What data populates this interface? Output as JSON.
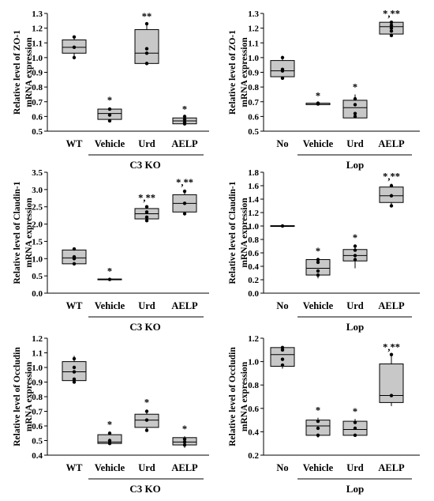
{
  "chart_data": [
    {
      "type": "box",
      "ylabel_lines": [
        "Relative level of ZO-1",
        "mRNA expression"
      ],
      "ylim": [
        0.5,
        1.3
      ],
      "yticks": [
        "0.5",
        "0.6",
        "0.7",
        "0.8",
        "0.9",
        "1.0",
        "1.1",
        "1.2",
        "1.3"
      ],
      "categories": [
        "WT",
        "Vehicle",
        "Urd",
        "AELP"
      ],
      "group_label": "C3 KO",
      "boxes": [
        {
          "q1": 1.03,
          "median": 1.07,
          "q3": 1.12,
          "min": 1.0,
          "max": 1.14,
          "points": [
            1.0,
            1.07,
            1.14
          ],
          "sig": ""
        },
        {
          "q1": 0.58,
          "median": 0.62,
          "q3": 0.65,
          "min": 0.56,
          "max": 0.66,
          "points": [
            0.57,
            0.61,
            0.65
          ],
          "sig": "*"
        },
        {
          "q1": 0.96,
          "median": 1.03,
          "q3": 1.19,
          "min": 0.95,
          "max": 1.23,
          "points": [
            0.96,
            1.03,
            1.06,
            1.23
          ],
          "sig": "**"
        },
        {
          "q1": 0.55,
          "median": 0.57,
          "q3": 0.59,
          "min": 0.54,
          "max": 0.6,
          "points": [
            0.55,
            0.56,
            0.58,
            0.6
          ],
          "sig": "*"
        }
      ]
    },
    {
      "type": "box",
      "ylabel_lines": [
        "Relative level of ZO-1",
        "mRNA expression"
      ],
      "ylim": [
        0.5,
        1.3
      ],
      "yticks": [
        "0.5",
        "0.6",
        "0.7",
        "0.8",
        "0.9",
        "1.0",
        "1.1",
        "1.2",
        "1.3"
      ],
      "categories": [
        "No",
        "Vehicle",
        "Urd",
        "AELP"
      ],
      "group_label": "Lop",
      "boxes": [
        {
          "q1": 0.87,
          "median": 0.91,
          "q3": 0.98,
          "min": 0.86,
          "max": 1.0,
          "points": [
            0.86,
            0.91,
            0.92,
            1.0
          ],
          "sig": ""
        },
        {
          "q1": 0.68,
          "median": 0.69,
          "q3": 0.69,
          "min": 0.68,
          "max": 0.69,
          "points": [
            0.685,
            0.69
          ],
          "sig": "*"
        },
        {
          "q1": 0.59,
          "median": 0.66,
          "q3": 0.71,
          "min": 0.59,
          "max": 0.75,
          "points": [
            0.6,
            0.62,
            0.68,
            0.72
          ],
          "sig": "*"
        },
        {
          "q1": 1.16,
          "median": 1.21,
          "q3": 1.24,
          "min": 1.14,
          "max": 1.25,
          "points": [
            1.15,
            1.18,
            1.2,
            1.22,
            1.24
          ],
          "sig": "*,**"
        }
      ]
    },
    {
      "type": "box",
      "ylabel_lines": [
        "Relative level of Claudin-1",
        "mRNA expression"
      ],
      "ylim": [
        0.0,
        3.5
      ],
      "yticks": [
        "0.0",
        "0.5",
        "1.0",
        "1.5",
        "2.0",
        "2.5",
        "3.0",
        "3.5"
      ],
      "categories": [
        "WT",
        "Vehicle",
        "Urd",
        "AELP"
      ],
      "group_label": "C3 KO",
      "boxes": [
        {
          "q1": 0.85,
          "median": 1.02,
          "q3": 1.25,
          "min": 0.82,
          "max": 1.3,
          "points": [
            0.85,
            1.0,
            1.05,
            1.28
          ],
          "sig": ""
        },
        {
          "q1": 0.39,
          "median": 0.4,
          "q3": 0.41,
          "min": 0.38,
          "max": 0.42,
          "points": [
            0.4
          ],
          "sig": "*"
        },
        {
          "q1": 2.15,
          "median": 2.3,
          "q3": 2.45,
          "min": 2.08,
          "max": 2.55,
          "points": [
            2.1,
            2.2,
            2.35,
            2.5
          ],
          "sig": "*,**"
        },
        {
          "q1": 2.35,
          "median": 2.6,
          "q3": 2.85,
          "min": 2.25,
          "max": 3.0,
          "points": [
            2.3,
            2.6,
            2.95
          ],
          "sig": "*,**"
        }
      ]
    },
    {
      "type": "box",
      "ylabel_lines": [
        "Relative level of Claudin-1",
        "mRNA expression"
      ],
      "ylim": [
        0.0,
        1.8
      ],
      "yticks": [
        "0.0",
        "0.2",
        "0.4",
        "0.6",
        "0.8",
        "1.0",
        "1.2",
        "1.4",
        "1.6",
        "1.8"
      ],
      "categories": [
        "No",
        "Vehicle",
        "Urd",
        "AELP"
      ],
      "group_label": "Lop",
      "boxes": [
        {
          "q1": 0.995,
          "median": 1.0,
          "q3": 1.005,
          "min": 0.99,
          "max": 1.01,
          "points": [
            1.0
          ],
          "sig": ""
        },
        {
          "q1": 0.27,
          "median": 0.37,
          "q3": 0.5,
          "min": 0.22,
          "max": 0.52,
          "points": [
            0.27,
            0.33,
            0.46,
            0.5
          ],
          "sig": "*"
        },
        {
          "q1": 0.48,
          "median": 0.56,
          "q3": 0.65,
          "min": 0.37,
          "max": 0.72,
          "points": [
            0.5,
            0.56,
            0.64,
            0.7
          ],
          "sig": "*"
        },
        {
          "q1": 1.35,
          "median": 1.45,
          "q3": 1.58,
          "min": 1.28,
          "max": 1.63,
          "points": [
            1.3,
            1.45,
            1.6
          ],
          "sig": "*,**"
        }
      ]
    },
    {
      "type": "box",
      "ylabel_lines": [
        "Relative level of Occludin",
        "mRNA expression"
      ],
      "ylim": [
        0.4,
        1.2
      ],
      "yticks": [
        "0.4",
        "0.5",
        "0.6",
        "0.7",
        "0.8",
        "0.9",
        "1.0",
        "1.1",
        "1.2"
      ],
      "categories": [
        "WT",
        "Vehicle",
        "Urd",
        "AELP"
      ],
      "group_label": "C3 KO",
      "boxes": [
        {
          "q1": 0.91,
          "median": 0.97,
          "q3": 1.04,
          "min": 0.89,
          "max": 1.08,
          "points": [
            0.9,
            0.92,
            0.97,
            1.0,
            1.06
          ],
          "sig": ""
        },
        {
          "q1": 0.48,
          "median": 0.49,
          "q3": 0.54,
          "min": 0.47,
          "max": 0.56,
          "points": [
            0.48,
            0.5,
            0.55
          ],
          "sig": "*"
        },
        {
          "q1": 0.59,
          "median": 0.64,
          "q3": 0.68,
          "min": 0.56,
          "max": 0.71,
          "points": [
            0.57,
            0.64,
            0.7
          ],
          "sig": "*"
        },
        {
          "q1": 0.47,
          "median": 0.49,
          "q3": 0.52,
          "min": 0.45,
          "max": 0.53,
          "points": [
            0.47,
            0.49,
            0.51
          ],
          "sig": "*"
        }
      ]
    },
    {
      "type": "box",
      "ylabel_lines": [
        "Relative level of Occludin",
        "mRNA expression"
      ],
      "ylim": [
        0.2,
        1.2
      ],
      "yticks": [
        "0.2",
        "0.4",
        "0.6",
        "0.8",
        "1.0",
        "1.2"
      ],
      "categories": [
        "No",
        "Vehicle",
        "Urd",
        "AELP"
      ],
      "group_label": "Lop",
      "boxes": [
        {
          "q1": 0.96,
          "median": 1.06,
          "q3": 1.12,
          "min": 0.94,
          "max": 1.13,
          "points": [
            0.97,
            1.02,
            1.1,
            1.12
          ],
          "sig": ""
        },
        {
          "q1": 0.37,
          "median": 0.45,
          "q3": 0.5,
          "min": 0.35,
          "max": 0.52,
          "points": [
            0.37,
            0.43,
            0.49
          ],
          "sig": "*"
        },
        {
          "q1": 0.37,
          "median": 0.42,
          "q3": 0.49,
          "min": 0.36,
          "max": 0.51,
          "points": [
            0.37,
            0.43,
            0.48
          ],
          "sig": "*"
        },
        {
          "q1": 0.65,
          "median": 0.71,
          "q3": 0.98,
          "min": 0.62,
          "max": 1.06,
          "points": [
            0.71,
            1.06
          ],
          "sig": "*,**"
        }
      ]
    }
  ]
}
